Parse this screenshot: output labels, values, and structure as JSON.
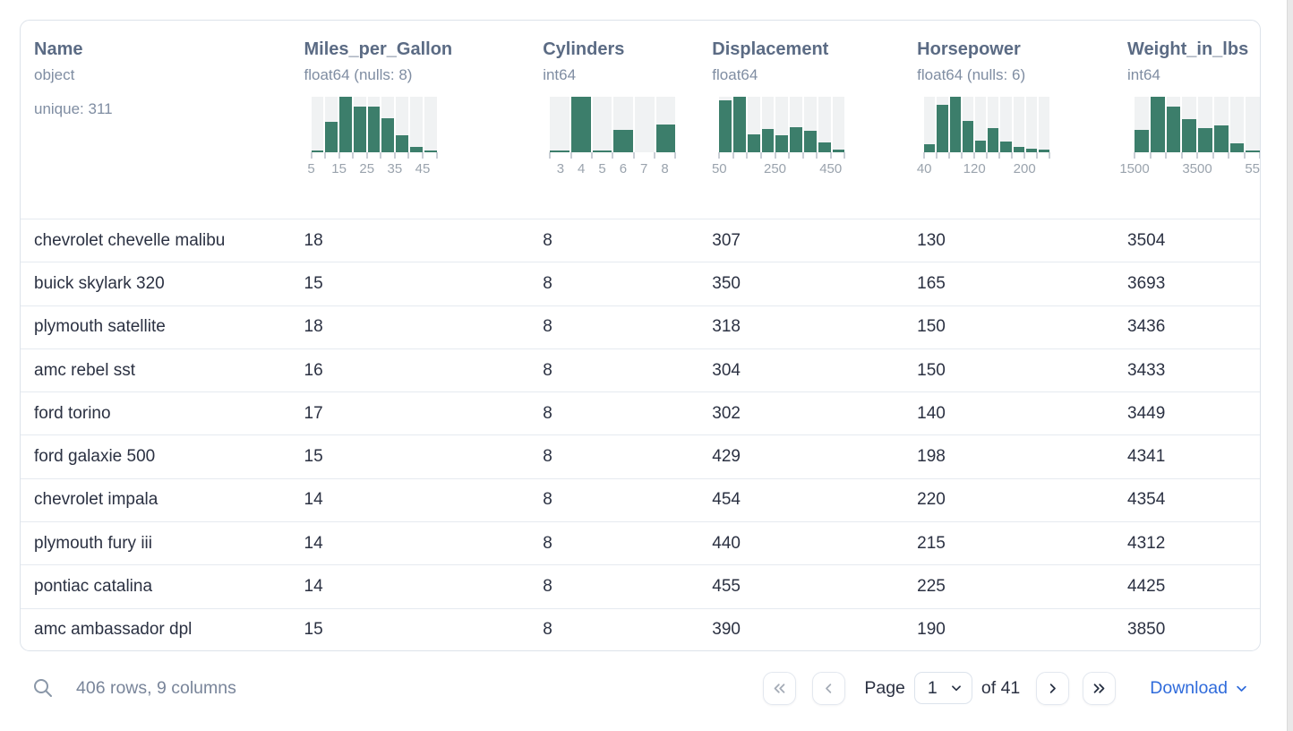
{
  "columns": [
    {
      "name": "Name",
      "type": "object",
      "extra": "unique: 311"
    },
    {
      "name": "Miles_per_Gallon",
      "type": "float64 (nulls: 8)"
    },
    {
      "name": "Cylinders",
      "type": "int64"
    },
    {
      "name": "Displacement",
      "type": "float64"
    },
    {
      "name": "Horsepower",
      "type": "float64 (nulls: 6)"
    },
    {
      "name": "Weight_in_lbs",
      "type": "int64"
    }
  ],
  "rows": [
    [
      "chevrolet chevelle malibu",
      "18",
      "8",
      "307",
      "130",
      "3504"
    ],
    [
      "buick skylark 320",
      "15",
      "8",
      "350",
      "165",
      "3693"
    ],
    [
      "plymouth satellite",
      "18",
      "8",
      "318",
      "150",
      "3436"
    ],
    [
      "amc rebel sst",
      "16",
      "8",
      "304",
      "150",
      "3433"
    ],
    [
      "ford torino",
      "17",
      "8",
      "302",
      "140",
      "3449"
    ],
    [
      "ford galaxie 500",
      "15",
      "8",
      "429",
      "198",
      "4341"
    ],
    [
      "chevrolet impala",
      "14",
      "8",
      "454",
      "220",
      "4354"
    ],
    [
      "plymouth fury iii",
      "14",
      "8",
      "440",
      "215",
      "4312"
    ],
    [
      "pontiac catalina",
      "14",
      "8",
      "455",
      "225",
      "4425"
    ],
    [
      "amc ambassador dpl",
      "15",
      "8",
      "390",
      "190",
      "3850"
    ]
  ],
  "chart_data": [
    {
      "type": "bar",
      "column": "Miles_per_Gallon",
      "bin_edges": [
        5,
        10,
        15,
        20,
        25,
        30,
        35,
        40,
        45,
        50
      ],
      "relative_heights": [
        0.03,
        0.55,
        1.0,
        0.82,
        0.82,
        0.62,
        0.3,
        0.1,
        0.03
      ],
      "tick_labels": [
        {
          "label": "5",
          "at": 0
        },
        {
          "label": "15",
          "at": 2
        },
        {
          "label": "25",
          "at": 4
        },
        {
          "label": "35",
          "at": 6
        },
        {
          "label": "45",
          "at": 8
        }
      ]
    },
    {
      "type": "bar",
      "column": "Cylinders",
      "categories": [
        "3",
        "4",
        "5",
        "6",
        "7",
        "8"
      ],
      "relative_heights": [
        0.03,
        1.0,
        0.02,
        0.4,
        0,
        0.5
      ],
      "tick_labels": [
        {
          "label": "3",
          "at": 0.5
        },
        {
          "label": "4",
          "at": 1.5
        },
        {
          "label": "5",
          "at": 2.5
        },
        {
          "label": "6",
          "at": 3.5
        },
        {
          "label": "7",
          "at": 4.5
        },
        {
          "label": "8",
          "at": 5.5
        }
      ]
    },
    {
      "type": "bar",
      "column": "Displacement",
      "bin_edges": [
        50,
        100,
        150,
        200,
        250,
        300,
        350,
        400,
        450,
        500
      ],
      "relative_heights": [
        0.93,
        1.0,
        0.33,
        0.42,
        0.3,
        0.45,
        0.38,
        0.18,
        0.05
      ],
      "tick_labels": [
        {
          "label": "50",
          "at": 0
        },
        {
          "label": "250",
          "at": 4
        },
        {
          "label": "450",
          "at": 8
        }
      ]
    },
    {
      "type": "bar",
      "column": "Horsepower",
      "bin_edges": [
        40,
        60,
        80,
        100,
        120,
        140,
        160,
        180,
        200,
        220,
        240
      ],
      "relative_heights": [
        0.15,
        0.85,
        1.0,
        0.57,
        0.21,
        0.43,
        0.19,
        0.1,
        0.06,
        0.05
      ],
      "tick_labels": [
        {
          "label": "40",
          "at": 0
        },
        {
          "label": "120",
          "at": 4
        },
        {
          "label": "200",
          "at": 8
        }
      ]
    },
    {
      "type": "bar",
      "column": "Weight_in_lbs",
      "bin_edges": [
        1500,
        2000,
        2500,
        3000,
        3500,
        4000,
        4500,
        5000,
        5500
      ],
      "relative_heights": [
        0.4,
        1.0,
        0.82,
        0.6,
        0.44,
        0.48,
        0.16,
        0.03
      ],
      "tick_labels": [
        {
          "label": "1500",
          "at": 0
        },
        {
          "label": "3500",
          "at": 4
        },
        {
          "label": "5500",
          "at": 8
        }
      ]
    }
  ],
  "footer": {
    "rows_summary": "406 rows, 9 columns",
    "page_label": "Page",
    "page_value": "1",
    "of_label": "of 41",
    "download_label": "Download"
  },
  "colors": {
    "bar_fill": "#3c7e6b",
    "accent_blue": "#2f6bdb",
    "header_title": "#5b6b84",
    "muted_text": "#7f8da2",
    "row_text": "#2b3142"
  }
}
